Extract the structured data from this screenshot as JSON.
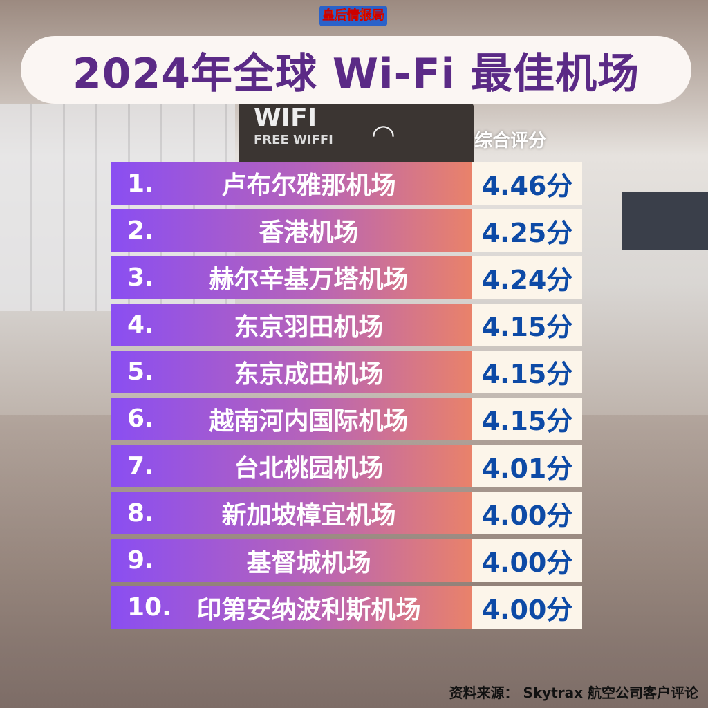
{
  "logo": "皇后情报局",
  "title": "2024年全球 Wi-Fi 最佳机场",
  "background_sign": {
    "line1": "WIFI",
    "line2": "FREE WIFFI"
  },
  "column_header": "综合评分",
  "score_unit": "分",
  "colors": {
    "title": "#5b2a86",
    "score": "#0d4aa6",
    "bar_start": "#8a4ef2",
    "bar_end": "#e9826a"
  },
  "rankings": [
    {
      "rank": "1.",
      "name": "卢布尔雅那机场",
      "score": "4.46分"
    },
    {
      "rank": "2.",
      "name": "香港机场",
      "score": "4.25分"
    },
    {
      "rank": "3.",
      "name": "赫尔辛基万塔机场",
      "score": "4.24分"
    },
    {
      "rank": "4.",
      "name": "东京羽田机场",
      "score": "4.15分"
    },
    {
      "rank": "5.",
      "name": "东京成田机场",
      "score": "4.15分"
    },
    {
      "rank": "6.",
      "name": "越南河内国际机场",
      "score": "4.15分"
    },
    {
      "rank": "7.",
      "name": "台北桃园机场",
      "score": "4.01分"
    },
    {
      "rank": "8.",
      "name": "新加坡樟宜机场",
      "score": "4.00分"
    },
    {
      "rank": "9.",
      "name": "基督城机场",
      "score": "4.00分"
    },
    {
      "rank": "10.",
      "name": "印第安纳波利斯机场",
      "score": "4.00分"
    }
  ],
  "source": "资料来源： Skytrax 航空公司客户评论"
}
